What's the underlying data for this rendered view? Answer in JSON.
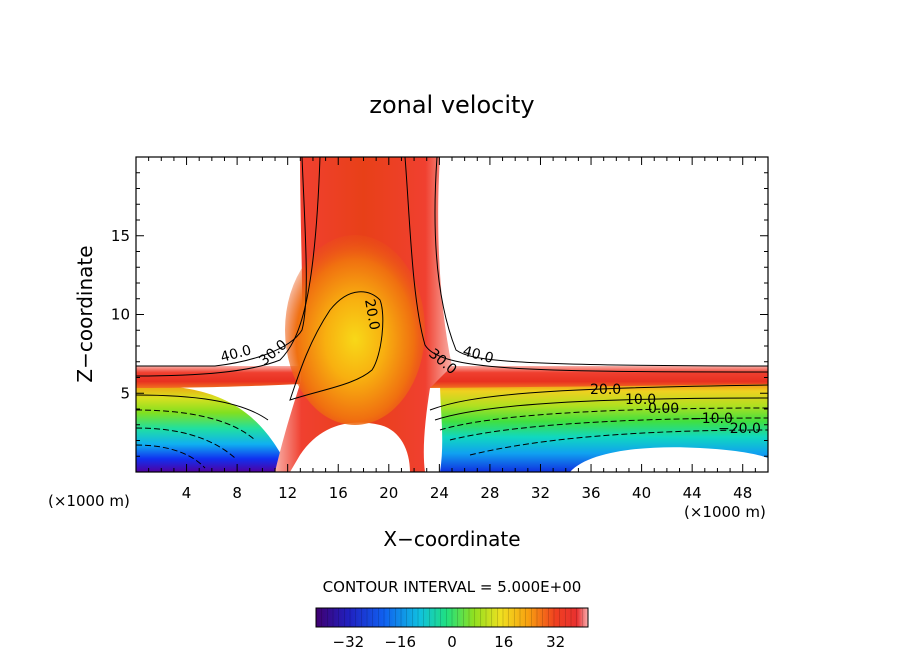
{
  "chart_data": {
    "type": "heatmap",
    "title": "zonal velocity",
    "xlabel": "X−coordinate",
    "ylabel": "Z−coordinate",
    "x_unit_left": "(×1000 m)",
    "x_unit_right": "(×1000 m)",
    "xlim": [
      0,
      50
    ],
    "ylim": [
      0,
      20
    ],
    "x_ticks": [
      "4",
      "8",
      "12",
      "16",
      "20",
      "24",
      "28",
      "32",
      "36",
      "40",
      "44",
      "48"
    ],
    "y_ticks": [
      "5",
      "10",
      "15"
    ],
    "contour_interval_text": "CONTOUR INTERVAL = 5.000E+00",
    "colorbar": {
      "range": [
        -42,
        42
      ],
      "tick_labels": [
        "−32",
        "−16",
        "0",
        "16",
        "32"
      ]
    },
    "contour_labels": [
      "40.0",
      "30.0",
      "20.0",
      "30.0",
      "40.0",
      "20.0",
      "10.0",
      "0.00",
      "−10.0",
      "−20.0"
    ],
    "colors": {
      "max": "#f0b0a8",
      "high": "#e83820",
      "mid": "#f8c818",
      "zero": "#98e020",
      "low": "#1040f0",
      "min": "#400080"
    }
  }
}
